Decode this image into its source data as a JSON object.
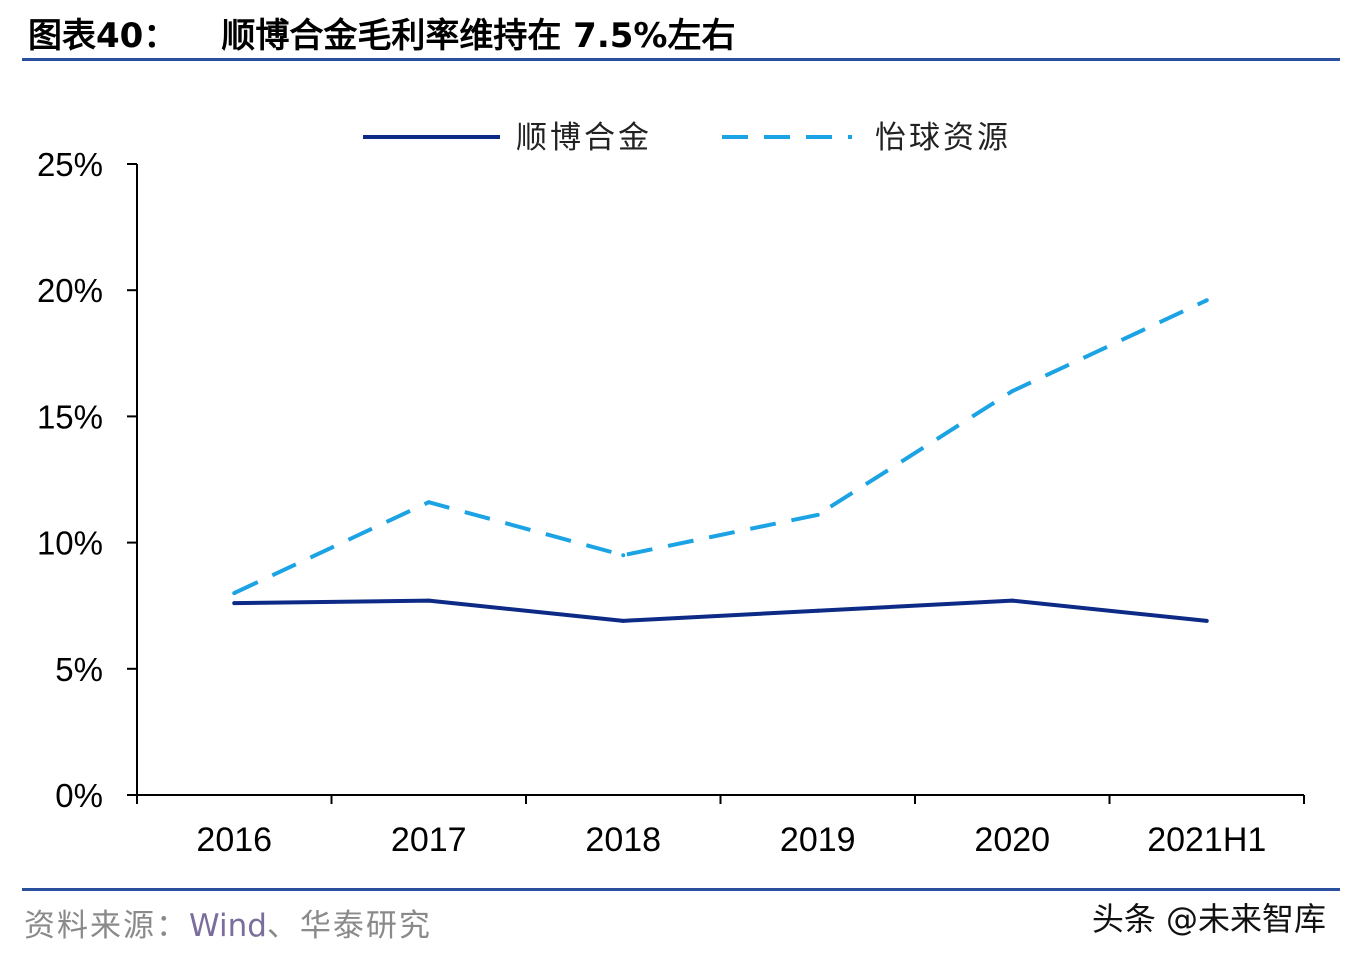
{
  "header": {
    "label": "图表40：",
    "text": "顺博合金毛利率维持在 7.5%左右"
  },
  "footer": {
    "source_prefix": "资料来源：",
    "source_wind": "Wind",
    "source_suffix": "、华泰研究",
    "watermark": "头条 @未来智库"
  },
  "colors": {
    "rule": "#2a4f9e",
    "series_1": "#0d2a86",
    "series_2": "#1ba3e4"
  },
  "chart_data": {
    "type": "line",
    "x": [
      "2016",
      "2017",
      "2018",
      "2019",
      "2020",
      "2021H1"
    ],
    "ylim": [
      0,
      25
    ],
    "yticks": [
      "0%",
      "5%",
      "10%",
      "15%",
      "20%",
      "25%"
    ],
    "legend_position": "top-center",
    "grid": false,
    "series": [
      {
        "name": "顺博合金",
        "style": "solid",
        "values": [
          7.6,
          7.7,
          6.9,
          7.3,
          7.7,
          6.9
        ]
      },
      {
        "name": "怡球资源",
        "style": "dashed",
        "values": [
          8.0,
          11.6,
          9.5,
          11.1,
          16.0,
          19.6
        ]
      }
    ]
  }
}
